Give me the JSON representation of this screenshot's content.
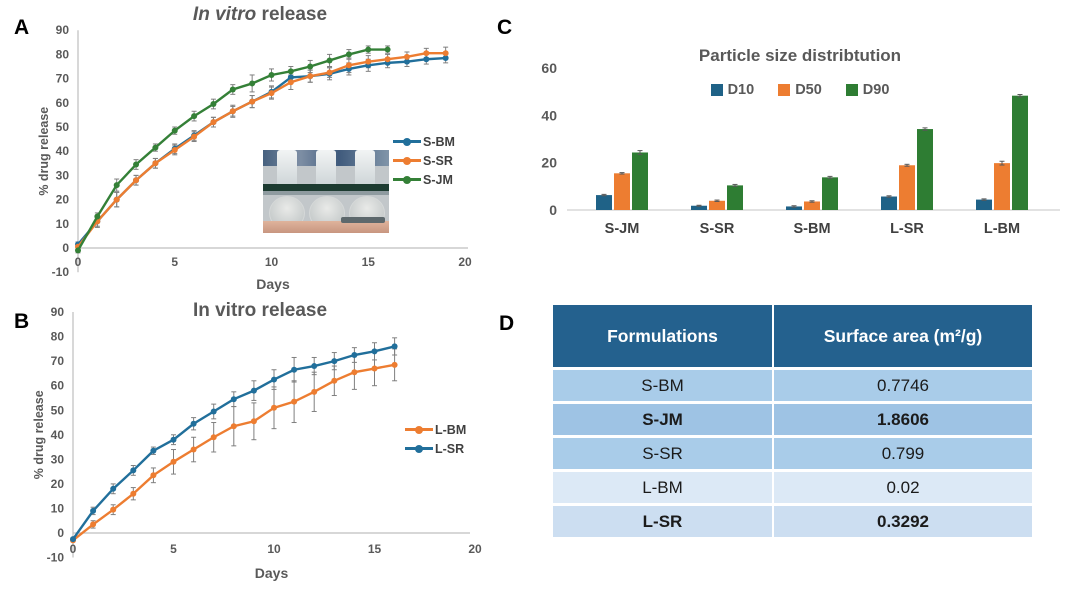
{
  "panel_labels": {
    "a": "A",
    "b": "B",
    "c": "C",
    "d": "D"
  },
  "colors": {
    "blue": "#216F9B",
    "orange": "#ED7D31",
    "green": "#348037",
    "bar_blue": "#1F6287",
    "bar_orange": "#ED7D31",
    "bar_green": "#2E7D33",
    "table_header": "#24618E",
    "axis_gray": "#BFBFBF",
    "error_bar_gray": "#7F7F7F"
  },
  "chart_data": [
    {
      "type": "line",
      "title": "In vitro release",
      "title_italic": "In vitro",
      "title_rest": " release",
      "xlabel": "Days",
      "ylabel": "% drug release",
      "xlim": [
        0,
        20
      ],
      "ylim": [
        -10,
        90
      ],
      "xticks": [
        0,
        5,
        10,
        15,
        20
      ],
      "yticks": [
        -10,
        0,
        10,
        20,
        30,
        40,
        50,
        60,
        70,
        80,
        90
      ],
      "grid": false,
      "legend_position": "right",
      "series": [
        {
          "name": "S-BM",
          "color": "#216F9B",
          "x": [
            0,
            1,
            2,
            3,
            4,
            5,
            6,
            7,
            8,
            9,
            10,
            11,
            12,
            13,
            14,
            15,
            16,
            17,
            18,
            19
          ],
          "y": [
            1.5,
            11,
            20,
            28,
            35,
            41,
            46.5,
            52,
            56.5,
            60.5,
            64.5,
            70.5,
            71,
            72,
            74,
            75.5,
            76.5,
            77,
            78,
            78.5
          ],
          "err": [
            1,
            2.5,
            3,
            2,
            2,
            2,
            2,
            2,
            2.5,
            2.5,
            2.5,
            2,
            2.5,
            2.5,
            2.5,
            2.5,
            2,
            2,
            2,
            2
          ]
        },
        {
          "name": "S-SR",
          "color": "#ED7D31",
          "x": [
            0,
            1,
            2,
            3,
            4,
            5,
            6,
            7,
            8,
            9,
            10,
            11,
            12,
            13,
            14,
            15,
            16,
            17,
            18,
            19
          ],
          "y": [
            0.5,
            11,
            20,
            28,
            35,
            40.5,
            46,
            52,
            56.5,
            60.5,
            64,
            68.5,
            71,
            72.5,
            75.5,
            77,
            78,
            79,
            80.5,
            80.5
          ],
          "err": [
            1,
            2,
            3,
            2,
            2,
            2,
            2,
            2,
            2,
            2.5,
            2.5,
            3,
            2.5,
            2,
            3,
            2.5,
            2,
            2,
            2,
            2.5
          ]
        },
        {
          "name": "S-JM",
          "color": "#348037",
          "x": [
            0,
            1,
            2,
            3,
            4,
            5,
            6,
            7,
            8,
            9,
            10,
            11,
            12,
            13,
            14,
            15,
            16
          ],
          "y": [
            -1,
            13,
            26,
            34.5,
            41.5,
            48.5,
            54.5,
            59.5,
            65.5,
            68,
            71.5,
            73,
            75,
            77.5,
            80,
            82,
            82
          ],
          "err": [
            1,
            1.5,
            2.5,
            2,
            1.5,
            1.5,
            2,
            2,
            2,
            3.5,
            2.5,
            2,
            2.5,
            2.5,
            2,
            1.5,
            1.5
          ]
        }
      ]
    },
    {
      "type": "line",
      "title": "In vitro release",
      "xlabel": "Days",
      "ylabel": "% drug release",
      "xlim": [
        0,
        20
      ],
      "ylim": [
        -10,
        90
      ],
      "xticks": [
        0,
        5,
        10,
        15,
        20
      ],
      "yticks": [
        -10,
        0,
        10,
        20,
        30,
        40,
        50,
        60,
        70,
        80,
        90
      ],
      "grid": false,
      "legend_position": "right",
      "series": [
        {
          "name": "L-BM",
          "color": "#ED7D31",
          "x": [
            0,
            1,
            2,
            3,
            4,
            5,
            6,
            7,
            8,
            9,
            10,
            11,
            12,
            13,
            14,
            15,
            16
          ],
          "y": [
            -3,
            3.5,
            9.5,
            16,
            23.5,
            29,
            34,
            39,
            43.5,
            45.5,
            51,
            53.5,
            57.5,
            62,
            65.5,
            67,
            68.5
          ],
          "err": [
            0.5,
            1.5,
            2,
            2.5,
            3,
            5,
            5,
            6,
            8,
            7.5,
            8.5,
            8.5,
            8,
            6,
            7,
            7,
            6.5
          ]
        },
        {
          "name": "L-SR",
          "color": "#216F9B",
          "x": [
            0,
            1,
            2,
            3,
            4,
            5,
            6,
            7,
            8,
            9,
            10,
            11,
            12,
            13,
            14,
            15,
            16
          ],
          "y": [
            -2.5,
            9,
            18,
            25.5,
            33.5,
            38,
            44.5,
            49.5,
            54.5,
            58,
            62.5,
            66.5,
            68,
            70,
            72.5,
            74,
            76
          ],
          "err": [
            0.5,
            1.5,
            2,
            2,
            1.5,
            2,
            2.5,
            3,
            3,
            4,
            4,
            5,
            3.5,
            3.5,
            3,
            3.5,
            3.5
          ]
        }
      ]
    },
    {
      "type": "bar",
      "title": "Particle size distribtution",
      "categories": [
        "S-JM",
        "S-SR",
        "S-BM",
        "L-SR",
        "L-BM"
      ],
      "ylim": [
        0,
        60
      ],
      "yticks": [
        0,
        20,
        40,
        60
      ],
      "grid": false,
      "legend_position": "top",
      "series": [
        {
          "name": "D10",
          "color": "#1F6287",
          "values": [
            6.3,
            1.8,
            1.5,
            5.7,
            4.4
          ],
          "err": [
            0.3,
            0.2,
            0.3,
            0.3,
            0.3
          ]
        },
        {
          "name": "D50",
          "color": "#ED7D31",
          "values": [
            15.5,
            3.9,
            3.6,
            18.9,
            19.8
          ],
          "err": [
            0.3,
            0.3,
            0.3,
            0.4,
            0.8
          ]
        },
        {
          "name": "D90",
          "color": "#2E7D33",
          "values": [
            24.3,
            10.4,
            13.8,
            34.2,
            48.3
          ],
          "err": [
            0.8,
            0.4,
            0.4,
            0.5,
            0.5
          ]
        }
      ]
    }
  ],
  "table_d": {
    "headers": [
      "Formulations",
      "Surface area (m²/g)"
    ],
    "rows": [
      {
        "formulation": "S-BM",
        "surface_area": "0.7746"
      },
      {
        "formulation": "S-JM",
        "surface_area": "1.8606"
      },
      {
        "formulation": "S-SR",
        "surface_area": "0.799"
      },
      {
        "formulation": "L-BM",
        "surface_area": "0.02"
      },
      {
        "formulation": "L-SR",
        "surface_area": "0.3292"
      }
    ]
  }
}
